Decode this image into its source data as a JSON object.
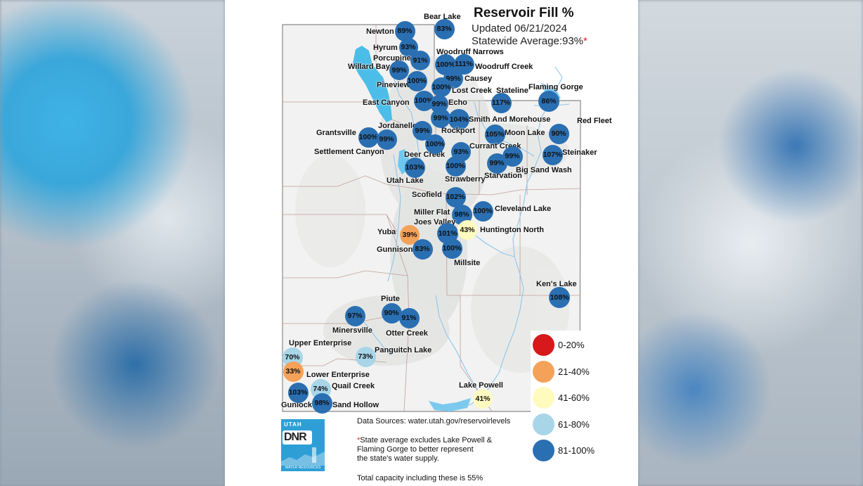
{
  "title": "Reservoir Fill %",
  "updated": "Updated 06/21/2024",
  "statewide": "Statewide Average:93%",
  "statewide_mark": "*",
  "colors": {
    "c0_20": "#d7191c",
    "c21_40": "#f4a259",
    "c41_60": "#fffbbf",
    "c61_80": "#a8d5e8",
    "c81_100": "#2a6fb2"
  },
  "legend": [
    {
      "label": "0-20%",
      "color": "#d7191c"
    },
    {
      "label": "21-40%",
      "color": "#f4a259"
    },
    {
      "label": "41-60%",
      "color": "#fffbbf"
    },
    {
      "label": "61-80%",
      "color": "#a8d5e8"
    },
    {
      "label": "81-100%",
      "color": "#2a6fb2"
    }
  ],
  "reservoirs": [
    {
      "name": "Bear Lake",
      "value": "83%"
    },
    {
      "name": "Newton",
      "value": "89%"
    },
    {
      "name": "Hyrum",
      "value": "93%"
    },
    {
      "name": "Porcupine",
      "value": "91%"
    },
    {
      "name": "Woodruff Narrows",
      "value": "100%"
    },
    {
      "name": "Woodruff Creek",
      "value": "111%"
    },
    {
      "name": "Willard Bay",
      "value": "99%"
    },
    {
      "name": "Pineview",
      "value": "100%"
    },
    {
      "name": "Causey",
      "value": "99%"
    },
    {
      "name": "Lost Creek",
      "value": "100%"
    },
    {
      "name": "East Canyon",
      "value": "100%"
    },
    {
      "name": "Echo",
      "value": "99%"
    },
    {
      "name": "Stateline",
      "value": "117%"
    },
    {
      "name": "Flaming Gorge",
      "value": "86%"
    },
    {
      "name": "Smith And Morehouse",
      "value": "104%"
    },
    {
      "name": "Red Fleet",
      "value": "90%"
    },
    {
      "name": "Jordanelle",
      "value": "99%"
    },
    {
      "name": "Rockport",
      "value": "99%"
    },
    {
      "name": "Moon Lake",
      "value": "105%"
    },
    {
      "name": "Grantsville",
      "value": "100%"
    },
    {
      "name": "Settlement Canyon",
      "value": "99%"
    },
    {
      "name": "Deer Creek",
      "value": "100%"
    },
    {
      "name": "Currant Creek",
      "value": "93%"
    },
    {
      "name": "Steinaker",
      "value": "107%"
    },
    {
      "name": "Utah Lake",
      "value": "103%"
    },
    {
      "name": "Strawberry",
      "value": "100%"
    },
    {
      "name": "Starvation",
      "value": "99%"
    },
    {
      "name": "Big Sand Wash",
      "value": "99%"
    },
    {
      "name": "Scofield",
      "value": "102%"
    },
    {
      "name": "Miller Flat",
      "value": "98%"
    },
    {
      "name": "Cleveland Lake",
      "value": "100%"
    },
    {
      "name": "Joes Valley",
      "value": "101%"
    },
    {
      "name": "Huntington North",
      "value": "43%"
    },
    {
      "name": "Yuba",
      "value": "39%"
    },
    {
      "name": "Gunnison",
      "value": "83%"
    },
    {
      "name": "Millsite",
      "value": "100%"
    },
    {
      "name": "Ken's Lake",
      "value": "108%"
    },
    {
      "name": "Piute",
      "value": "90%"
    },
    {
      "name": "Minersville",
      "value": "97%"
    },
    {
      "name": "Otter Creek",
      "value": "91%"
    },
    {
      "name": "Upper Enterprise",
      "value": "70%"
    },
    {
      "name": "Panguitch Lake",
      "value": "73%"
    },
    {
      "name": "Lower Enterprise",
      "value": "33%"
    },
    {
      "name": "Quail Creek",
      "value": "74%"
    },
    {
      "name": "Gunlock",
      "value": "103%"
    },
    {
      "name": "Sand Hollow",
      "value": "98%"
    },
    {
      "name": "Lake Powell",
      "value": "41%"
    }
  ],
  "notes": {
    "sources": "Data Sources: water.utah.gov/reservoirlevels",
    "asterisk": "*",
    "note1_line1": "State average excludes Lake Powell &",
    "note1_line2": "Flaming Gorge to better represent",
    "note1_line3": "the state's water supply.",
    "total": "Total capacity including these is 55%"
  },
  "logo": {
    "top": "UTAH",
    "mark": "DNR",
    "bottom": "WATER RESOURCES"
  }
}
